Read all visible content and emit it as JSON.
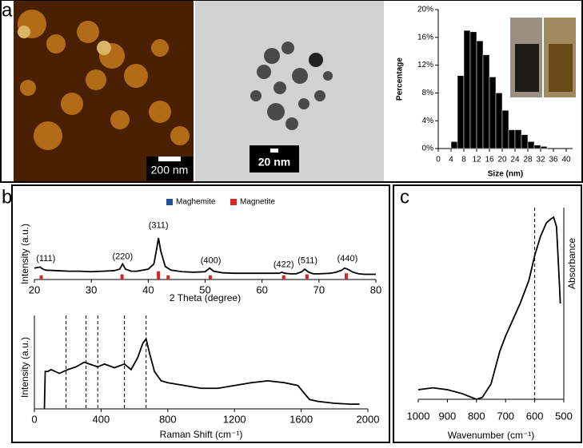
{
  "panel_labels": [
    "a",
    "b",
    "c"
  ],
  "scale_bars": [
    "200 nm",
    "20 nm"
  ],
  "chart_data": [
    {
      "type": "histogram",
      "bins": [
        4,
        6,
        8,
        10,
        12,
        14,
        16,
        18,
        20,
        22,
        24,
        26,
        28,
        30,
        32,
        34
      ],
      "values": [
        1,
        10.5,
        17,
        16.8,
        15.5,
        13.5,
        10.3,
        8,
        5.5,
        2.7,
        2.7,
        2,
        1,
        0.5,
        0.3
      ],
      "color": "#000000",
      "xlim": [
        0,
        42
      ],
      "xticks": [
        0,
        4,
        8,
        12,
        16,
        20,
        24,
        28,
        32,
        36,
        40
      ],
      "ylim": [
        0,
        20
      ],
      "yticks": [
        {
          "value": 0,
          "label": "0%"
        },
        {
          "value": 4,
          "label": "4%"
        },
        {
          "value": 8,
          "label": "8%"
        },
        {
          "value": 12,
          "label": "12%"
        },
        {
          "value": 16,
          "label": "16%"
        },
        {
          "value": 20,
          "label": "20%"
        }
      ],
      "xlabel": "Size (nm)",
      "ylabel": "Percentage"
    },
    {
      "type": "line",
      "xlabel": "2 Theta (degree)",
      "ylabel": "Intensity (a.u.)",
      "color": "#000000",
      "x": [
        20,
        21,
        21.5,
        22,
        24,
        26,
        28,
        30,
        32,
        34,
        35,
        35.5,
        36,
        37,
        38,
        40,
        41,
        41.5,
        41.8,
        42.2,
        43,
        44,
        46,
        48,
        50,
        50.8,
        51.5,
        53,
        55,
        57,
        60,
        62,
        63,
        63.5,
        64,
        65,
        66,
        67,
        67.5,
        68.2,
        69,
        70,
        72,
        73,
        74,
        74.5,
        75,
        76,
        77,
        78,
        80
      ],
      "values": [
        22,
        24,
        20,
        18,
        17,
        16,
        16,
        15,
        16,
        17,
        20,
        30,
        20,
        16,
        16,
        20,
        30,
        60,
        80,
        55,
        25,
        18,
        15,
        14,
        15,
        22,
        16,
        13,
        12,
        12,
        12,
        12,
        12,
        14,
        12,
        11,
        11,
        15,
        20,
        14,
        11,
        11,
        12,
        14,
        18,
        22,
        20,
        14,
        11,
        10,
        10
      ],
      "reference": [
        {
          "name": "Maghemite",
          "color": "#1f4e9c",
          "x": [],
          "values": []
        },
        {
          "name": "Magnetite",
          "color": "#d62728",
          "x": [
            21.2,
            35.4,
            41.8,
            43.5,
            50.9,
            63.8,
            67.9,
            74.8
          ],
          "values": [
            8,
            10,
            16,
            8,
            8,
            8,
            10,
            12
          ]
        }
      ],
      "annotations": [
        {
          "text": "(111)",
          "x": 22,
          "y": 40
        },
        {
          "text": "(220)",
          "x": 35.5,
          "y": 44
        },
        {
          "text": "(311)",
          "x": 41.8,
          "y": 104
        },
        {
          "text": "(400)",
          "x": 51,
          "y": 36
        },
        {
          "text": "(422)",
          "x": 63.8,
          "y": 28
        },
        {
          "text": "(511)",
          "x": 68,
          "y": 36
        },
        {
          "text": "(440)",
          "x": 75,
          "y": 40
        }
      ],
      "xlim": [
        20,
        80
      ],
      "xticks": [
        20,
        30,
        40,
        50,
        60,
        70,
        80
      ],
      "ylim": [
        0,
        100
      ]
    },
    {
      "type": "line",
      "xlabel": "Raman Shift (cm⁻¹)",
      "ylabel": "Intensity (a.u.)",
      "color": "#000000",
      "x": [
        60,
        65,
        80,
        100,
        150,
        200,
        250,
        300,
        330,
        380,
        420,
        480,
        540,
        580,
        620,
        650,
        670,
        690,
        720,
        760,
        800,
        900,
        1000,
        1100,
        1200,
        1300,
        1400,
        1500,
        1580,
        1650,
        1700,
        1800,
        1900,
        1950
      ],
      "values": [
        0,
        40,
        40,
        42,
        38,
        42,
        45,
        50,
        48,
        45,
        48,
        44,
        48,
        42,
        55,
        70,
        75,
        60,
        40,
        30,
        28,
        25,
        22,
        22,
        25,
        28,
        30,
        28,
        25,
        10,
        8,
        6,
        5,
        5
      ],
      "vlines": [
        190,
        310,
        380,
        540,
        670
      ],
      "xlim": [
        0,
        2000
      ],
      "xticks": [
        0,
        400,
        800,
        1200,
        1600,
        2000
      ],
      "ylim": [
        0,
        100
      ]
    },
    {
      "type": "line",
      "xlabel": "Wavenumber (cm⁻¹)",
      "ylabel": "Absorbance",
      "color": "#000000",
      "x": [
        1000,
        950,
        900,
        850,
        800,
        780,
        750,
        720,
        700,
        650,
        620,
        600,
        580,
        560,
        545,
        535,
        525,
        515,
        512
      ],
      "values": [
        5,
        6,
        5,
        3,
        0,
        1,
        8,
        25,
        33,
        50,
        62,
        75,
        85,
        92,
        94,
        95,
        90,
        60,
        50
      ],
      "vlines": [
        600
      ],
      "xlim": [
        1000,
        500
      ],
      "xticks": [
        1000,
        900,
        800,
        700,
        600,
        500
      ],
      "ylim": [
        0,
        100
      ]
    }
  ]
}
